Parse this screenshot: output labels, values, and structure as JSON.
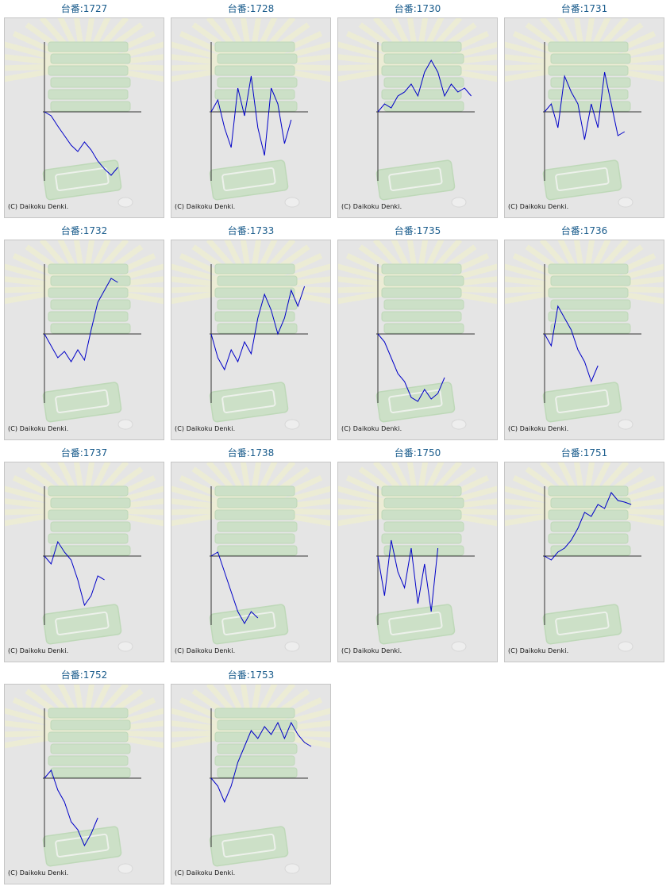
{
  "labels": {
    "machine_prefix": "台番:",
    "copyright": "(C) Daikoku Denki."
  },
  "colors": {
    "title": "#1a5c8c",
    "line": "#0000c8",
    "axis": "#333333",
    "panel": "#e5e5e5",
    "border": "#c6c6c6",
    "watermark": "#b8dcb0"
  },
  "icons": {
    "background": "pachinko-pachislot-machine-watermark"
  },
  "machines": [
    {
      "number": "1727",
      "chart_data": {
        "type": "line",
        "y": [
          0,
          -5,
          -18,
          -30,
          -42,
          -50,
          -38,
          -48,
          -62,
          -72,
          -80,
          -70
        ]
      }
    },
    {
      "number": "1728",
      "chart_data": {
        "type": "line",
        "y": [
          0,
          15,
          -20,
          -45,
          30,
          -5,
          45,
          -20,
          -55,
          30,
          10,
          -40,
          -10
        ]
      }
    },
    {
      "number": "1730",
      "chart_data": {
        "type": "line",
        "y": [
          0,
          10,
          5,
          20,
          25,
          35,
          20,
          50,
          65,
          50,
          20,
          35,
          25,
          30,
          20
        ]
      }
    },
    {
      "number": "1731",
      "chart_data": {
        "type": "line",
        "y": [
          0,
          10,
          -20,
          45,
          25,
          10,
          -35,
          10,
          -20,
          50,
          10,
          -30,
          -25
        ]
      }
    },
    {
      "number": "1732",
      "chart_data": {
        "type": "line",
        "y": [
          0,
          -15,
          -30,
          -22,
          -35,
          -20,
          -33,
          5,
          40,
          55,
          70,
          65
        ]
      }
    },
    {
      "number": "1733",
      "chart_data": {
        "type": "line",
        "y": [
          0,
          -30,
          -45,
          -20,
          -35,
          -10,
          -25,
          20,
          50,
          30,
          0,
          20,
          55,
          35,
          60
        ]
      }
    },
    {
      "number": "1735",
      "chart_data": {
        "type": "line",
        "y": [
          0,
          -10,
          -30,
          -50,
          -60,
          -80,
          -85,
          -70,
          -82,
          -75,
          -55
        ]
      }
    },
    {
      "number": "1736",
      "chart_data": {
        "type": "line",
        "y": [
          0,
          -15,
          35,
          20,
          5,
          -20,
          -35,
          -60,
          -40
        ]
      }
    },
    {
      "number": "1737",
      "chart_data": {
        "type": "line",
        "y": [
          0,
          -10,
          18,
          5,
          -5,
          -30,
          -62,
          -50,
          -25,
          -30
        ]
      }
    },
    {
      "number": "1738",
      "chart_data": {
        "type": "line",
        "y": [
          0,
          5,
          -20,
          -45,
          -70,
          -85,
          -70,
          -78
        ]
      }
    },
    {
      "number": "1750",
      "chart_data": {
        "type": "line",
        "y": [
          0,
          -50,
          20,
          -20,
          -40,
          10,
          -60,
          -10,
          -70,
          10
        ]
      }
    },
    {
      "number": "1751",
      "chart_data": {
        "type": "line",
        "y": [
          0,
          -5,
          5,
          10,
          20,
          35,
          55,
          50,
          65,
          60,
          80,
          70,
          68,
          65
        ]
      }
    },
    {
      "number": "1752",
      "chart_data": {
        "type": "line",
        "y": [
          0,
          10,
          -15,
          -30,
          -55,
          -65,
          -85,
          -70,
          -50
        ]
      }
    },
    {
      "number": "1753",
      "chart_data": {
        "type": "line",
        "y": [
          0,
          -10,
          -30,
          -10,
          20,
          40,
          60,
          50,
          65,
          55,
          70,
          50,
          70,
          55,
          45,
          40
        ]
      }
    }
  ]
}
